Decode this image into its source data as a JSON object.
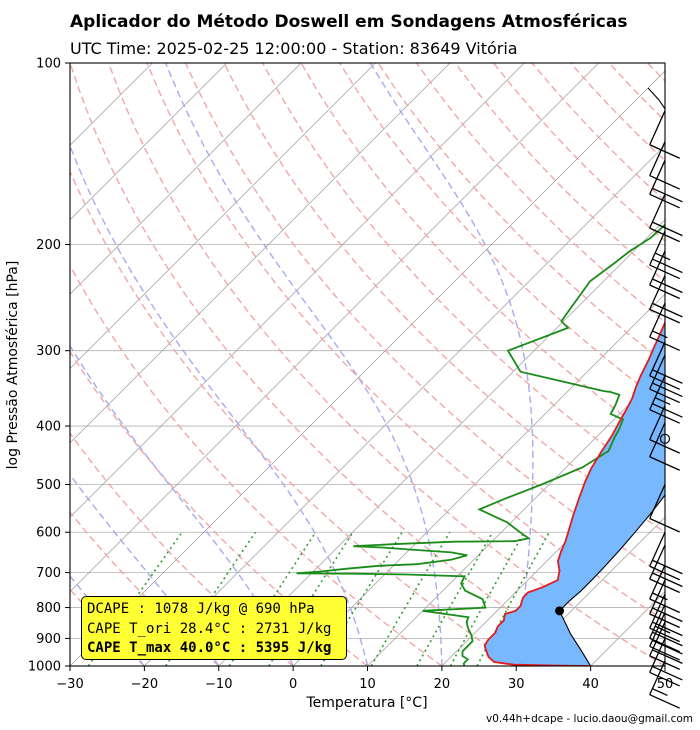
{
  "header": {
    "title": "Aplicador do Método Doswell em Sondagens Atmosféricas",
    "subtitle": "UTC Time: 2025-02-25 12:00:00 - Station: 83649 Vitória"
  },
  "infobox": {
    "line1": "DCAPE : 1078 J/kg @ 690 hPa",
    "line2": "CAPE T_ori 28.4°C : 2731 J/kg",
    "line3": "CAPE T_max 40.0°C : 5395 J/kg"
  },
  "footer": {
    "text": "v0.44h+dcape  -  lucio.daou@gmail.com"
  },
  "chart_data": {
    "type": "line",
    "xlabel": "Temperatura [°C]",
    "ylabel": "log Pressão Atmosférica [hPa]",
    "xlim": [
      -30,
      50
    ],
    "ylim": [
      1000,
      100
    ],
    "y_scale": "log",
    "grid": true,
    "x_ticks": [
      "−30",
      "−20",
      "−10",
      "0",
      "10",
      "20",
      "30",
      "40",
      "50"
    ],
    "y_ticks": [
      "100",
      "200",
      "300",
      "400",
      "500",
      "600",
      "700",
      "800",
      "900",
      "1000"
    ],
    "colors": {
      "temperature": "#e41a1c",
      "dewpoint": "#1a8c1a",
      "parcel": "#000000",
      "cape_fill": "#77b8ff",
      "dry_adiabats": "#f4a6a6",
      "moist_adiabats": "#a9a9f0",
      "mixing_ratio": "#2e9e2e",
      "isotherms": "#9a9a9a",
      "infobox": "#ffff33"
    },
    "series": [
      {
        "key": "temperature",
        "points": [
          [
            40.0,
            1000
          ],
          [
            35.0,
            998
          ],
          [
            29.5,
            995
          ],
          [
            26.5,
            985
          ],
          [
            25.0,
            965
          ],
          [
            24.0,
            945
          ],
          [
            23.0,
            925
          ],
          [
            22.7,
            905
          ],
          [
            22.7,
            880
          ],
          [
            22.2,
            860
          ],
          [
            22.2,
            840
          ],
          [
            21.5,
            820
          ],
          [
            22.5,
            810
          ],
          [
            22.5,
            795
          ],
          [
            21.7,
            770
          ],
          [
            21.7,
            755
          ],
          [
            23.0,
            740
          ],
          [
            24.0,
            720
          ],
          [
            23.0,
            695
          ],
          [
            21.5,
            670
          ],
          [
            20.6,
            645
          ],
          [
            19.8,
            620
          ],
          [
            19.0,
            600
          ],
          [
            17.3,
            560
          ],
          [
            15.8,
            525
          ],
          [
            14.5,
            495
          ],
          [
            13.5,
            470
          ],
          [
            12.6,
            440
          ],
          [
            11.9,
            415
          ],
          [
            11.1,
            395
          ],
          [
            10.3,
            375
          ],
          [
            9.6,
            360
          ],
          [
            8.6,
            345
          ],
          [
            7.7,
            330
          ],
          [
            6.6,
            310
          ],
          [
            5.6,
            295
          ],
          [
            4.6,
            280
          ],
          [
            3.5,
            265
          ],
          [
            4.5,
            250
          ],
          [
            5.0,
            230
          ],
          [
            5.0,
            212
          ],
          [
            4.0,
            200
          ],
          [
            3.0,
            185
          ],
          [
            2.5,
            175
          ],
          [
            1.0,
            160
          ],
          [
            0.0,
            150
          ],
          [
            0.6,
            140
          ],
          [
            1.5,
            136
          ],
          [
            4.5,
            130
          ],
          [
            7.0,
            125
          ],
          [
            10.0,
            115
          ],
          [
            13.0,
            100
          ]
        ]
      },
      {
        "key": "dewpoint",
        "points": [
          [
            23.0,
            1000
          ],
          [
            22.6,
            990
          ],
          [
            22.6,
            975
          ],
          [
            21.4,
            962
          ],
          [
            20.8,
            945
          ],
          [
            20.8,
            910
          ],
          [
            19.9,
            890
          ],
          [
            18.4,
            865
          ],
          [
            17.4,
            845
          ],
          [
            17.0,
            830
          ],
          [
            13.5,
            820
          ],
          [
            10.0,
            810
          ],
          [
            18.0,
            800
          ],
          [
            16.5,
            775
          ],
          [
            13.0,
            750
          ],
          [
            11.5,
            730
          ],
          [
            11.0,
            710
          ],
          [
            3.0,
            705
          ],
          [
            -4.0,
            703
          ],
          [
            -12.0,
            702
          ],
          [
            -9.0,
            697
          ],
          [
            -6.0,
            690
          ],
          [
            -2.0,
            682
          ],
          [
            3.0,
            678
          ],
          [
            7.0,
            666
          ],
          [
            8.5,
            655
          ],
          [
            6.0,
            648
          ],
          [
            0.0,
            641
          ],
          [
            -4.0,
            636
          ],
          [
            -8.0,
            633
          ],
          [
            -3.0,
            628
          ],
          [
            5.0,
            622
          ],
          [
            13.0,
            621
          ],
          [
            14.5,
            614
          ],
          [
            12.5,
            600
          ],
          [
            9.5,
            578
          ],
          [
            4.0,
            550
          ],
          [
            6.0,
            528
          ],
          [
            9.0,
            500
          ],
          [
            12.2,
            468
          ],
          [
            13.5,
            440
          ],
          [
            12.5,
            418
          ],
          [
            12.0,
            405
          ],
          [
            11.2,
            390
          ],
          [
            8.8,
            382
          ],
          [
            8.3,
            370
          ],
          [
            7.4,
            355
          ],
          [
            5.7,
            351
          ],
          [
            4.8,
            350
          ],
          [
            -9.0,
            325
          ],
          [
            -13.5,
            300
          ],
          [
            -8.5,
            275
          ],
          [
            -10.3,
            268
          ],
          [
            -10.8,
            255
          ],
          [
            -11.8,
            230
          ],
          [
            -11.0,
            215
          ],
          [
            -10.5,
            205
          ],
          [
            -9.5,
            195
          ],
          [
            -9.2,
            180
          ],
          [
            -8.0,
            165
          ],
          [
            -7.8,
            155
          ],
          [
            -7.0,
            142
          ],
          [
            -5.0,
            130
          ],
          [
            -3.0,
            115
          ],
          [
            -2.0,
            100
          ]
        ]
      },
      {
        "key": "parcel",
        "points": [
          [
            28.4,
            810
          ],
          [
            28.4,
            780
          ],
          [
            28.6,
            750
          ],
          [
            28.6,
            710
          ],
          [
            28.5,
            680
          ],
          [
            28.3,
            640
          ],
          [
            28.0,
            600
          ],
          [
            27.6,
            560
          ],
          [
            27.0,
            520
          ],
          [
            26.3,
            480
          ],
          [
            25.5,
            450
          ],
          [
            24.3,
            420
          ],
          [
            23.0,
            390
          ],
          [
            21.5,
            360
          ],
          [
            19.6,
            330
          ],
          [
            17.5,
            300
          ],
          [
            15.3,
            275
          ],
          [
            13.0,
            255
          ],
          [
            9.0,
            230
          ],
          [
            5.0,
            210
          ],
          [
            0.5,
            190
          ],
          [
            -3.5,
            175
          ],
          [
            -7.5,
            163
          ],
          [
            -11.2,
            152
          ],
          [
            -14.8,
            142
          ],
          [
            -18.0,
            134
          ],
          [
            -21.0,
            127
          ],
          [
            -24.0,
            121
          ],
          [
            -27.0,
            115
          ],
          [
            -30.0,
            110
          ]
        ]
      },
      {
        "key": "parcel_tmax",
        "points": [
          [
            40.0,
            1000
          ],
          [
            36.5,
            940
          ],
          [
            33.0,
            885
          ],
          [
            28.4,
            810
          ]
        ]
      }
    ],
    "lcl_marker": {
      "x": 28.4,
      "y": 810
    },
    "wind_barbs": [
      {
        "p": 120,
        "flags": 0,
        "full": 1,
        "half": 0
      },
      {
        "p": 135,
        "flags": 0,
        "full": 1,
        "half": 0
      },
      {
        "p": 145,
        "flags": 0,
        "full": 2,
        "half": 0
      },
      {
        "p": 165,
        "flags": 0,
        "full": 2,
        "half": 0
      },
      {
        "p": 190,
        "flags": 0,
        "full": 2,
        "half": 1
      },
      {
        "p": 205,
        "flags": 0,
        "full": 2,
        "half": 0
      },
      {
        "p": 225,
        "flags": 0,
        "full": 2,
        "half": 0
      },
      {
        "p": 250,
        "flags": 0,
        "full": 1,
        "half": 1
      },
      {
        "p": 290,
        "flags": 0,
        "full": 2,
        "half": 0
      },
      {
        "p": 305,
        "flags": 0,
        "full": 2,
        "half": 0
      },
      {
        "p": 330,
        "flags": 0,
        "full": 2,
        "half": 1
      },
      {
        "p": 370,
        "flags": 0,
        "full": 1,
        "half": 0
      },
      {
        "p": 395,
        "flags": 0,
        "full": 1,
        "half": 0
      },
      {
        "p": 420,
        "calm": true
      },
      {
        "p": 500,
        "flags": 0,
        "full": 1,
        "half": 0
      },
      {
        "p": 600,
        "flags": 0,
        "full": 2,
        "half": 0
      },
      {
        "p": 630,
        "flags": 0,
        "full": 2,
        "half": 0
      },
      {
        "p": 680,
        "flags": 0,
        "full": 1,
        "half": 1
      },
      {
        "p": 720,
        "flags": 0,
        "full": 2,
        "half": 0
      },
      {
        "p": 760,
        "flags": 0,
        "full": 2,
        "half": 0
      },
      {
        "p": 790,
        "flags": 0,
        "full": 2,
        "half": 1
      },
      {
        "p": 815,
        "flags": 0,
        "full": 2,
        "half": 0
      },
      {
        "p": 845,
        "flags": 0,
        "full": 2,
        "half": 0
      },
      {
        "p": 900,
        "flags": 0,
        "full": 2,
        "half": 0
      },
      {
        "p": 980,
        "flags": 0,
        "full": 1,
        "half": 1
      }
    ]
  }
}
